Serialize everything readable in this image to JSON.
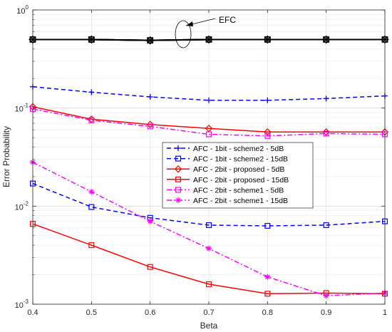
{
  "chart_data": {
    "type": "line",
    "xlabel": "Beta",
    "ylabel": "Error Probability",
    "xlim": [
      0.4,
      1
    ],
    "ylim": [
      0.001,
      1
    ],
    "yscale": "log",
    "grid": true,
    "legend_position": "center-right",
    "x": [
      0.4,
      0.5,
      0.6,
      0.7,
      0.8,
      0.9,
      1
    ],
    "xticks": [
      "0.4",
      "0.5",
      "0.6",
      "0.7",
      "0.8",
      "0.9",
      "1"
    ],
    "yticks": [
      {
        "base": "10",
        "exp": "0",
        "value": 1
      },
      {
        "base": "10",
        "exp": "-1",
        "value": 0.1
      },
      {
        "base": "10",
        "exp": "-2",
        "value": 0.01
      },
      {
        "base": "10",
        "exp": "-3",
        "value": 0.001
      }
    ],
    "annotation": "EFC",
    "efc_series": [
      {
        "color": "#000000",
        "marker": "plus",
        "values": [
          0.5,
          0.5,
          0.49,
          0.5,
          0.5,
          0.5,
          0.5
        ]
      },
      {
        "color": "#000000",
        "marker": "diamond",
        "values": [
          0.5,
          0.5,
          0.49,
          0.5,
          0.5,
          0.5,
          0.5
        ]
      },
      {
        "color": "#000000",
        "marker": "square",
        "values": [
          0.5,
          0.5,
          0.49,
          0.5,
          0.5,
          0.5,
          0.5
        ]
      },
      {
        "color": "#000000",
        "marker": "star",
        "values": [
          0.5,
          0.5,
          0.49,
          0.5,
          0.5,
          0.5,
          0.5
        ]
      }
    ],
    "series": [
      {
        "name": "AFC - 1bit - scheme2 - 5dB",
        "color": "#0000ff",
        "dash": "dashed",
        "marker": "plus",
        "values": [
          0.165,
          0.145,
          0.13,
          0.12,
          0.12,
          0.125,
          0.133
        ]
      },
      {
        "name": "AFC - 1bit - scheme2 - 15dB",
        "color": "#0000ff",
        "dash": "dashed",
        "marker": "square",
        "values": [
          0.017,
          0.0098,
          0.0076,
          0.0064,
          0.0063,
          0.0064,
          0.007
        ]
      },
      {
        "name": "AFC - 2bit - proposed - 5dB",
        "color": "#ff0000",
        "dash": "solid",
        "marker": "diamond",
        "values": [
          0.103,
          0.077,
          0.068,
          0.062,
          0.057,
          0.057,
          0.057
        ]
      },
      {
        "name": "AFC - 2bit - proposed - 15dB",
        "color": "#ff0000",
        "dash": "solid",
        "marker": "square",
        "values": [
          0.0066,
          0.004,
          0.0024,
          0.0016,
          0.00128,
          0.0013,
          0.00128
        ]
      },
      {
        "name": "AFC - 2bit - scheme1 - 5dB",
        "color": "#ff00ff",
        "dash": "dashdot",
        "marker": "square",
        "values": [
          0.098,
          0.075,
          0.065,
          0.054,
          0.052,
          0.055,
          0.054
        ]
      },
      {
        "name": "AFC - 2bit - scheme1 - 15dB",
        "color": "#ff00ff",
        "dash": "dashdot",
        "marker": "star",
        "values": [
          0.028,
          0.014,
          0.007,
          0.0037,
          0.0019,
          0.00122,
          0.0013
        ]
      }
    ]
  }
}
